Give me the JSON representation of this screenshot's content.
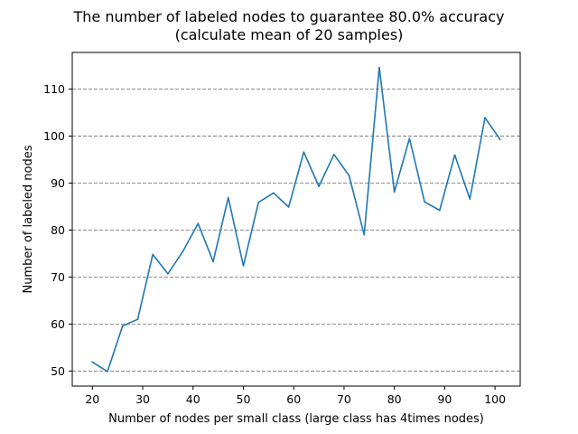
{
  "chart_data": {
    "type": "line",
    "title_line1": "The number of labeled nodes to guarantee 80.0% accuracy",
    "title_line2": "(calculate mean of 20 samples)",
    "xlabel": "Number of nodes per small class (large class has 4times nodes)",
    "ylabel": "Number of labeled nodes",
    "xlim": [
      16.0,
      105.0
    ],
    "ylim": [
      46.8,
      117.8
    ],
    "xticks": [
      20,
      30,
      40,
      50,
      60,
      70,
      80,
      90,
      100
    ],
    "yticks": [
      50,
      60,
      70,
      80,
      90,
      100,
      110
    ],
    "grid": "horizontal dashed",
    "line_color": "#1f77b4",
    "x": [
      20,
      23,
      26,
      29,
      32,
      35,
      38,
      41,
      44,
      47,
      50,
      53,
      56,
      59,
      62,
      65,
      68,
      71,
      74,
      77,
      80,
      83,
      86,
      89,
      92,
      95,
      98,
      101
    ],
    "values": [
      51.9,
      49.9,
      59.6,
      61.0,
      74.8,
      70.7,
      75.5,
      81.4,
      73.3,
      86.9,
      72.4,
      85.9,
      87.9,
      84.9,
      96.6,
      89.3,
      96.1,
      91.6,
      79.0,
      114.6,
      88.1,
      99.5,
      86.0,
      84.2,
      96.0,
      86.6,
      103.9,
      99.3
    ]
  }
}
